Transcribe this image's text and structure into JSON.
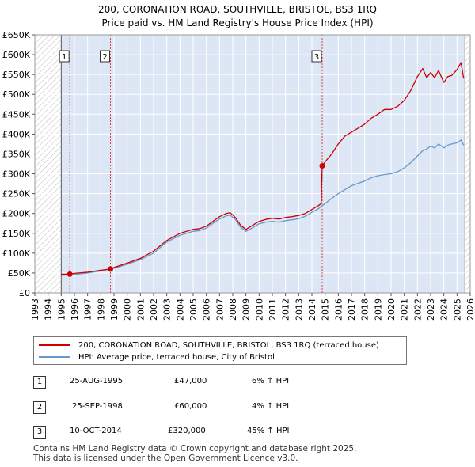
{
  "title_line1": "200, CORONATION ROAD, SOUTHVILLE, BRISTOL, BS3 1RQ",
  "title_line2": "Price paid vs. HM Land Registry's House Price Index (HPI)",
  "colors": {
    "property": "#cc0000",
    "hpi": "#6699cc",
    "shade": "#dde6f5",
    "marker_line": "#dd4444"
  },
  "legend": {
    "property": "200, CORONATION ROAD, SOUTHVILLE, BRISTOL, BS3 1RQ (terraced house)",
    "hpi": "HPI: Average price, terraced house, City of Bristol"
  },
  "sales": [
    {
      "num": "1",
      "date": "25-AUG-1995",
      "price": "£47,000",
      "hpi": "6% ↑ HPI"
    },
    {
      "num": "2",
      "date": "25-SEP-1998",
      "price": "£60,000",
      "hpi": "4% ↑ HPI"
    },
    {
      "num": "3",
      "date": "10-OCT-2014",
      "price": "£320,000",
      "hpi": "45% ↑ HPI"
    }
  ],
  "footer": {
    "line1": "Contains HM Land Registry data © Crown copyright and database right 2025.",
    "line2": "This data is licensed under the Open Government Licence v3.0."
  },
  "chart_data": {
    "type": "line",
    "xlim": [
      1993,
      2026
    ],
    "ylim": [
      0,
      650000
    ],
    "ytick_values": [
      0,
      50000,
      100000,
      150000,
      200000,
      250000,
      300000,
      350000,
      400000,
      450000,
      500000,
      550000,
      600000,
      650000
    ],
    "ytick_labels": [
      "£0",
      "£50K",
      "£100K",
      "£150K",
      "£200K",
      "£250K",
      "£300K",
      "£350K",
      "£400K",
      "£450K",
      "£500K",
      "£550K",
      "£600K",
      "£650K"
    ],
    "xtick_labels": [
      "1993",
      "1994",
      "1995",
      "1996",
      "1997",
      "1998",
      "1999",
      "2000",
      "2001",
      "2002",
      "2003",
      "2004",
      "2005",
      "2006",
      "2007",
      "2008",
      "2009",
      "2010",
      "2011",
      "2012",
      "2013",
      "2014",
      "2015",
      "2016",
      "2017",
      "2018",
      "2019",
      "2020",
      "2021",
      "2022",
      "2023",
      "2024",
      "2025",
      "2026"
    ],
    "shaded_ranges": [
      [
        1995.0,
        2025.6
      ]
    ],
    "hatched_ranges": [
      [
        1993,
        1995.0
      ],
      [
        2025.6,
        2026
      ]
    ],
    "sale_markers": [
      {
        "label": "1",
        "x": 1995.65,
        "y": 47000
      },
      {
        "label": "2",
        "x": 1998.73,
        "y": 60000
      },
      {
        "label": "3",
        "x": 2014.78,
        "y": 320000
      }
    ],
    "series": [
      {
        "name": "property",
        "x": [
          1995.0,
          1995.65,
          1996.0,
          1997.0,
          1998.0,
          1998.73,
          1999.0,
          2000.0,
          2001.0,
          2002.0,
          2003.0,
          2004.0,
          2005.0,
          2005.5,
          2006.0,
          2006.5,
          2007.0,
          2007.5,
          2007.8,
          2008.2,
          2008.6,
          2009.0,
          2009.5,
          2010.0,
          2010.5,
          2011.0,
          2011.5,
          2012.0,
          2012.5,
          2013.0,
          2013.5,
          2014.0,
          2014.5,
          2014.7,
          2014.78,
          2015.0,
          2015.5,
          2016.0,
          2016.5,
          2017.0,
          2017.5,
          2018.0,
          2018.5,
          2019.0,
          2019.5,
          2020.0,
          2020.5,
          2021.0,
          2021.5,
          2022.0,
          2022.4,
          2022.7,
          2023.0,
          2023.3,
          2023.6,
          2024.0,
          2024.3,
          2024.6,
          2025.0,
          2025.3,
          2025.5
        ],
        "values": [
          47000,
          47000,
          49000,
          52000,
          57000,
          60000,
          64000,
          75000,
          87000,
          105000,
          132000,
          150000,
          160000,
          162000,
          168000,
          180000,
          192000,
          200000,
          202000,
          190000,
          170000,
          160000,
          170000,
          180000,
          185000,
          188000,
          186000,
          190000,
          192000,
          195000,
          200000,
          210000,
          220000,
          225000,
          320000,
          330000,
          350000,
          375000,
          395000,
          405000,
          415000,
          425000,
          440000,
          450000,
          462000,
          462000,
          470000,
          485000,
          510000,
          545000,
          565000,
          542000,
          555000,
          542000,
          560000,
          530000,
          545000,
          548000,
          562000,
          580000,
          540000
        ]
      },
      {
        "name": "hpi",
        "x": [
          1995.0,
          1996.0,
          1997.0,
          1998.0,
          1999.0,
          2000.0,
          2001.0,
          2002.0,
          2003.0,
          2004.0,
          2005.0,
          2005.5,
          2006.0,
          2006.5,
          2007.0,
          2007.5,
          2007.8,
          2008.2,
          2008.6,
          2009.0,
          2009.5,
          2010.0,
          2010.5,
          2011.0,
          2011.5,
          2012.0,
          2012.5,
          2013.0,
          2013.5,
          2014.0,
          2014.5,
          2014.78,
          2015.0,
          2015.5,
          2016.0,
          2016.5,
          2017.0,
          2017.5,
          2018.0,
          2018.5,
          2019.0,
          2019.5,
          2020.0,
          2020.5,
          2021.0,
          2021.5,
          2022.0,
          2022.4,
          2022.7,
          2023.0,
          2023.3,
          2023.6,
          2024.0,
          2024.3,
          2024.6,
          2025.0,
          2025.3,
          2025.5
        ],
        "values": [
          44000,
          46000,
          50000,
          55000,
          62000,
          72000,
          84000,
          100000,
          128000,
          145000,
          155000,
          157000,
          163000,
          175000,
          186000,
          194000,
          196000,
          185000,
          165000,
          155000,
          164000,
          174000,
          178000,
          180000,
          178000,
          182000,
          184000,
          187000,
          193000,
          203000,
          212000,
          220000,
          225000,
          238000,
          250000,
          260000,
          270000,
          276000,
          282000,
          290000,
          295000,
          298000,
          300000,
          305000,
          315000,
          328000,
          345000,
          358000,
          362000,
          370000,
          365000,
          375000,
          365000,
          372000,
          375000,
          378000,
          385000,
          372000
        ]
      }
    ]
  }
}
